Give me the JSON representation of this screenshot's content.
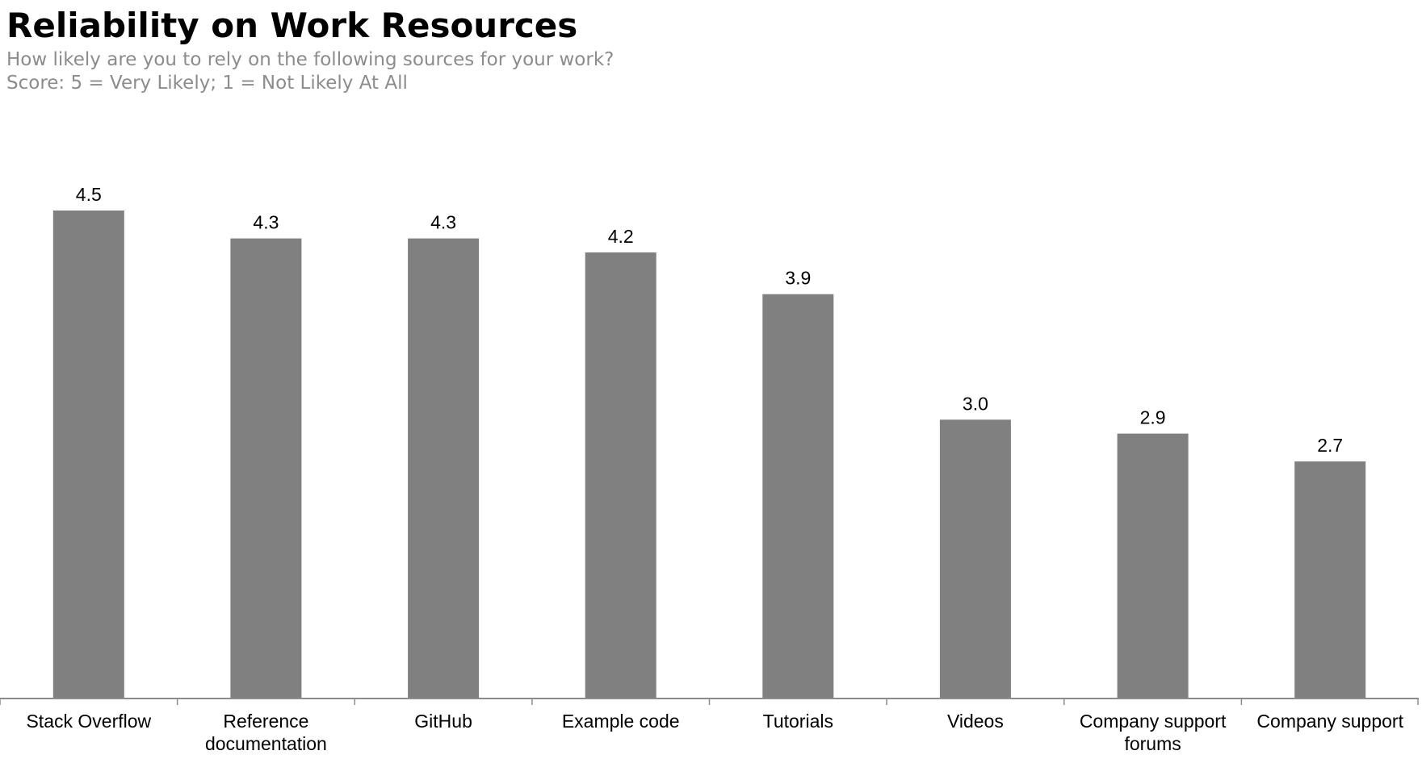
{
  "chart_data": {
    "type": "bar",
    "title": "Reliability on Work Resources",
    "subtitle": [
      "How likely are you to rely on the following sources for your work?",
      "Score: 5 = Very Likely; 1 = Not Likely At All"
    ],
    "categories": [
      [
        "Stack Overflow"
      ],
      [
        "Reference",
        "documentation"
      ],
      [
        "GitHub"
      ],
      [
        "Example code"
      ],
      [
        "Tutorials"
      ],
      [
        "Videos"
      ],
      [
        "Company support",
        "forums"
      ],
      [
        "Company support"
      ]
    ],
    "values": [
      4.5,
      4.3,
      4.3,
      4.2,
      3.9,
      3.0,
      2.9,
      2.7
    ],
    "value_labels": [
      "4.5",
      "4.3",
      "4.3",
      "4.2",
      "3.9",
      "3.0",
      "2.9",
      "2.7"
    ],
    "xlabel": "",
    "ylabel": "",
    "ylim": [
      1,
      5
    ],
    "grid": false,
    "legend": "none",
    "colors": {
      "bar": "#808080",
      "axis": "#8c8c8c",
      "title": "#000000",
      "subtitle": "#8c8c8c"
    }
  }
}
